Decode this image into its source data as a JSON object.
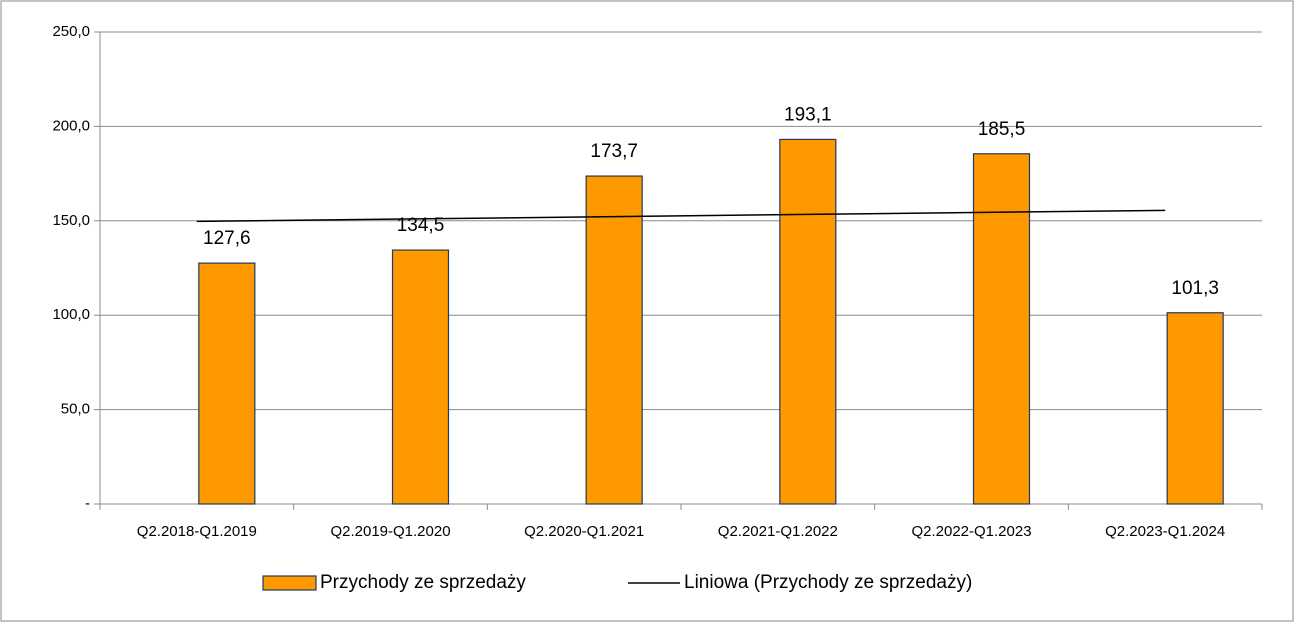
{
  "chart_data": {
    "type": "bar",
    "categories": [
      "Q2.2018-Q1.2019",
      "Q2.2019-Q1.2020",
      "Q2.2020-Q1.2021",
      "Q2.2021-Q1.2022",
      "Q2.2022-Q1.2023",
      "Q2.2023-Q1.2024"
    ],
    "series": [
      {
        "name": "Przychody ze sprzedaży",
        "color": "#ff9900",
        "values": [
          127.6,
          134.5,
          173.7,
          193.1,
          185.5,
          101.3
        ],
        "value_labels": [
          "127,6",
          "134,5",
          "173,7",
          "193,1",
          "185,5",
          "101,3"
        ]
      }
    ],
    "trendline": {
      "name": "Liniowa (Przychody ze sprzedaży)",
      "color": "#000000"
    },
    "ylim": [
      0,
      250
    ],
    "yticks": [
      {
        "value": 0,
        "label": "-"
      },
      {
        "value": 50,
        "label": "50,0"
      },
      {
        "value": 100,
        "label": "100,0"
      },
      {
        "value": 150,
        "label": "150,0"
      },
      {
        "value": 200,
        "label": "200,0"
      },
      {
        "value": 250,
        "label": "250,0"
      }
    ],
    "grid": true,
    "legend": "bottom"
  }
}
